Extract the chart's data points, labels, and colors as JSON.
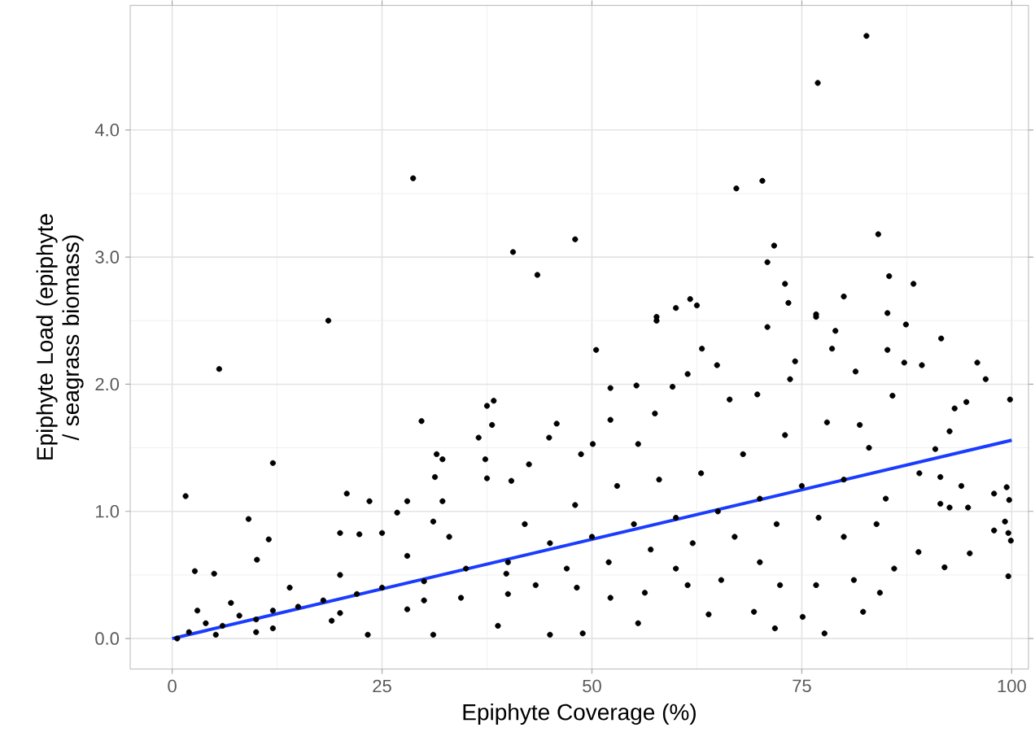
{
  "chart_data": {
    "type": "scatter",
    "xlabel": "Epiphyte Coverage (%)",
    "ylabel": "Epiphyte Load (epiphyte / seagrass biomass)",
    "xlim": [
      -5,
      102
    ],
    "ylim": [
      -0.24,
      4.98
    ],
    "xticks": [
      0,
      25,
      50,
      75,
      100
    ],
    "yticks": [
      {
        "value": 0,
        "label": "0.0"
      },
      {
        "value": 1,
        "label": "1.0"
      },
      {
        "value": 2,
        "label": "2.0"
      },
      {
        "value": 3,
        "label": "3.0"
      },
      {
        "value": 4,
        "label": "4.0"
      }
    ],
    "grid": true,
    "series": [
      {
        "marker": "circle",
        "color": "#000000",
        "x": [
          28.7,
          40.6,
          48.0,
          43.5,
          18.6,
          5.6,
          67.2,
          70.3,
          76.9,
          82.7,
          84.1,
          71.7,
          70.9,
          73.0,
          73.4,
          80.0,
          85.4,
          88.3,
          57.7,
          60.0,
          61.7,
          62.5,
          76.7,
          85.2,
          87.4,
          12.0,
          1.6,
          50.5,
          57.7,
          70.9,
          76.7,
          91.6,
          95.9,
          96.9,
          99.8,
          89.3,
          85.2,
          78.6,
          79.0,
          74.2,
          73.6,
          69.7,
          66.4,
          63.1,
          64.9,
          61.4,
          59.6,
          55.3,
          52.2,
          52.2,
          57.5,
          55.5,
          50.1,
          48.7,
          44.9,
          45.8,
          42.5,
          38.3,
          37.5,
          38.1,
          36.5,
          37.3,
          40.4,
          37.5,
          31.5,
          32.2,
          29.7,
          31.3,
          32.2,
          31.1,
          28.0,
          26.8,
          20.8,
          23.5,
          20.0,
          22.3,
          25.0,
          9.1,
          11.5,
          10.1,
          2.7,
          5.0,
          81.4,
          81.9,
          87.2,
          85.8,
          93.2,
          94.6,
          90.9,
          91.5,
          92.6,
          91.5,
          92.6,
          94.8,
          95.0,
          92.0,
          97.9,
          97.9,
          99.2,
          99.6,
          99.9,
          99.6,
          99.7,
          99.4,
          88.9,
          86.0,
          84.3,
          82.3,
          77.7,
          71.8,
          75.1,
          69.3,
          63.9,
          55.5,
          48.9,
          45.0,
          38.8,
          31.1,
          23.3,
          83.9,
          81.2,
          76.7,
          72.4,
          65.4,
          61.4,
          56.3,
          52.2,
          48.2,
          43.3,
          39.8,
          34.4,
          28.0,
          19.0,
          12.0,
          5.2,
          0.6,
          2,
          4,
          6,
          8,
          10,
          12,
          15,
          18,
          22,
          25,
          30,
          35,
          40,
          45,
          50,
          55,
          60,
          65,
          70,
          75,
          80,
          3,
          7,
          14,
          20,
          28,
          33,
          42,
          48,
          53,
          58,
          63,
          68,
          73,
          78,
          83,
          47,
          52,
          57,
          62,
          67,
          72,
          77,
          85,
          89,
          94,
          10,
          20,
          30,
          40,
          60,
          70,
          80
        ],
        "values": [
          3.62,
          3.04,
          3.14,
          2.86,
          2.5,
          2.12,
          3.54,
          3.6,
          4.37,
          4.74,
          3.18,
          3.09,
          2.96,
          2.79,
          2.64,
          2.69,
          2.85,
          2.79,
          2.5,
          2.6,
          2.67,
          2.62,
          2.53,
          2.56,
          2.47,
          1.38,
          1.12,
          2.27,
          2.53,
          2.45,
          2.55,
          2.36,
          2.17,
          2.04,
          1.88,
          2.15,
          2.27,
          2.28,
          2.42,
          2.18,
          2.04,
          1.92,
          1.88,
          2.28,
          2.15,
          2.08,
          1.98,
          1.99,
          1.97,
          1.72,
          1.77,
          1.53,
          1.53,
          1.45,
          1.58,
          1.69,
          1.37,
          1.87,
          1.83,
          1.68,
          1.58,
          1.41,
          1.24,
          1.26,
          1.45,
          1.41,
          1.71,
          1.27,
          1.08,
          0.92,
          1.08,
          0.99,
          1.14,
          1.08,
          0.83,
          0.82,
          0.83,
          0.94,
          0.78,
          0.62,
          0.53,
          0.51,
          2.1,
          1.68,
          2.17,
          1.91,
          1.81,
          1.86,
          1.49,
          1.27,
          1.63,
          1.06,
          1.03,
          1.03,
          0.67,
          0.56,
          1.14,
          0.85,
          0.92,
          0.83,
          0.77,
          0.49,
          1.09,
          1.19,
          0.68,
          0.55,
          0.36,
          0.21,
          0.04,
          0.08,
          0.17,
          0.21,
          0.19,
          0.12,
          0.04,
          0.03,
          0.1,
          0.03,
          0.03,
          0.9,
          0.46,
          0.42,
          0.42,
          0.46,
          0.42,
          0.36,
          0.32,
          0.4,
          0.42,
          0.51,
          0.32,
          0.23,
          0.14,
          0.08,
          0.03,
          0.0,
          0.05,
          0.12,
          0.1,
          0.18,
          0.15,
          0.22,
          0.25,
          0.3,
          0.35,
          0.4,
          0.45,
          0.55,
          0.6,
          0.75,
          0.8,
          0.9,
          0.95,
          1.0,
          1.1,
          1.2,
          1.25,
          0.22,
          0.28,
          0.4,
          0.5,
          0.65,
          0.8,
          0.9,
          1.05,
          1.2,
          1.25,
          1.3,
          1.45,
          1.6,
          1.7,
          1.5,
          0.55,
          0.6,
          0.7,
          0.75,
          0.8,
          0.9,
          0.95,
          1.1,
          1.3,
          1.2,
          0.05,
          0.2,
          0.3,
          0.35,
          0.55,
          0.6,
          0.8
        ]
      },
      {
        "type": "line",
        "marker": "none",
        "color": "#1a3cff",
        "x": [
          0,
          100
        ],
        "values": [
          0.0,
          1.56
        ]
      }
    ]
  }
}
